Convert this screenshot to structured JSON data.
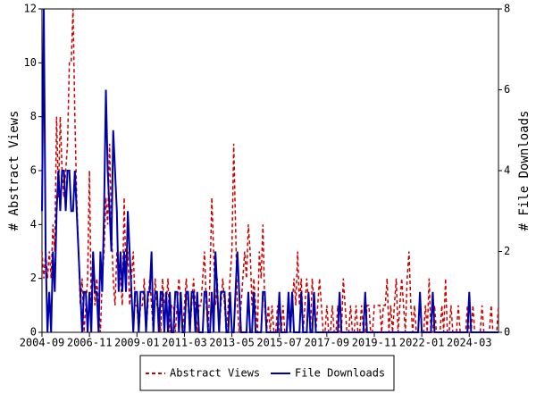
{
  "chart_data": {
    "type": "line",
    "x": [
      "2004-09",
      "2004-10",
      "2004-11",
      "2004-12",
      "2005-01",
      "2005-02",
      "2005-03",
      "2005-04",
      "2005-05",
      "2005-06",
      "2005-07",
      "2005-08",
      "2005-09",
      "2005-10",
      "2005-11",
      "2005-12",
      "2006-01",
      "2006-02",
      "2006-03",
      "2006-04",
      "2006-05",
      "2006-06",
      "2006-07",
      "2006-08",
      "2006-09",
      "2006-10",
      "2006-11",
      "2006-12",
      "2007-01",
      "2007-02",
      "2007-03",
      "2007-04",
      "2007-05",
      "2007-06",
      "2007-07",
      "2007-08",
      "2007-09",
      "2007-10",
      "2007-11",
      "2007-12",
      "2008-01",
      "2008-02",
      "2008-03",
      "2008-04",
      "2008-05",
      "2008-06",
      "2008-07",
      "2008-08",
      "2008-09",
      "2008-10",
      "2008-11",
      "2008-12",
      "2009-01",
      "2009-02",
      "2009-03",
      "2009-04",
      "2009-05",
      "2009-06",
      "2009-07",
      "2009-08",
      "2009-09",
      "2009-10",
      "2009-11",
      "2009-12",
      "2010-01",
      "2010-02",
      "2010-03",
      "2010-04",
      "2010-05",
      "2010-06",
      "2010-07",
      "2010-08",
      "2010-09",
      "2010-10",
      "2010-11",
      "2010-12",
      "2011-01",
      "2011-02",
      "2011-03",
      "2011-04",
      "2011-05",
      "2011-06",
      "2011-07",
      "2011-08",
      "2011-09",
      "2011-10",
      "2011-11",
      "2011-12",
      "2012-01",
      "2012-02",
      "2012-03",
      "2012-04",
      "2012-05",
      "2012-06",
      "2012-07",
      "2012-08",
      "2012-09",
      "2012-10",
      "2012-11",
      "2012-12",
      "2013-01",
      "2013-02",
      "2013-03",
      "2013-04",
      "2013-05",
      "2013-06",
      "2013-07",
      "2013-08",
      "2013-09",
      "2013-10",
      "2013-11",
      "2013-12",
      "2014-01",
      "2014-02",
      "2014-03",
      "2014-04",
      "2014-05",
      "2014-06",
      "2014-07",
      "2014-08",
      "2014-09",
      "2014-10",
      "2014-11",
      "2014-12",
      "2015-01",
      "2015-02",
      "2015-03",
      "2015-04",
      "2015-05",
      "2015-06",
      "2015-07",
      "2015-08",
      "2015-09",
      "2015-10",
      "2015-11",
      "2015-12",
      "2016-01",
      "2016-02",
      "2016-03",
      "2016-04",
      "2016-05",
      "2016-06",
      "2016-07",
      "2016-08",
      "2016-09",
      "2016-10",
      "2016-11",
      "2016-12",
      "2017-01",
      "2017-02",
      "2017-03",
      "2017-04",
      "2017-05",
      "2017-06",
      "2017-07",
      "2017-08",
      "2017-09",
      "2017-10",
      "2017-11",
      "2017-12",
      "2018-01",
      "2018-02",
      "2018-03",
      "2018-04",
      "2018-05",
      "2018-06",
      "2018-07",
      "2018-08",
      "2018-09",
      "2018-10",
      "2018-11",
      "2018-12",
      "2019-01",
      "2019-02",
      "2019-03",
      "2019-04",
      "2019-05",
      "2019-06",
      "2019-07",
      "2019-08",
      "2019-09",
      "2019-10",
      "2019-11",
      "2019-12",
      "2020-01",
      "2020-02",
      "2020-03",
      "2020-04",
      "2020-05",
      "2020-06",
      "2020-07",
      "2020-08",
      "2020-09",
      "2020-10",
      "2020-11",
      "2020-12",
      "2021-01",
      "2021-02",
      "2021-03",
      "2021-04",
      "2021-05",
      "2021-06",
      "2021-07",
      "2021-08",
      "2021-09",
      "2021-10",
      "2021-11",
      "2021-12",
      "2022-01",
      "2022-02",
      "2022-03",
      "2022-04",
      "2022-05",
      "2022-06",
      "2022-07",
      "2022-08",
      "2022-09",
      "2022-10",
      "2022-11",
      "2022-12",
      "2023-01",
      "2023-02",
      "2023-03",
      "2023-04",
      "2023-05",
      "2023-06",
      "2023-07",
      "2023-08",
      "2023-09",
      "2023-10",
      "2023-11",
      "2023-12",
      "2024-01",
      "2024-02",
      "2024-03",
      "2024-04",
      "2024-05",
      "2024-06",
      "2024-07",
      "2024-08",
      "2024-09",
      "2024-10",
      "2024-11",
      "2024-12",
      "2025-01",
      "2025-02",
      "2025-03",
      "2025-04",
      "2025-05",
      "2025-06",
      "2025-07"
    ],
    "xticks": [
      "2004-09",
      "2006-11",
      "2009-01",
      "2011-03",
      "2013-05",
      "2015-07",
      "2017-09",
      "2019-11",
      "2022-01",
      "2024-03"
    ],
    "ylabel": "# Abstract Views",
    "y2label": "# File Downloads",
    "ylim": [
      0,
      12
    ],
    "yticks": [
      0,
      2,
      4,
      6,
      8,
      10,
      12
    ],
    "y2lim": [
      0,
      8
    ],
    "y2ticks": [
      0,
      2,
      4,
      6,
      8
    ],
    "series": [
      {
        "name": "Abstract Views",
        "color": "#cc0000",
        "dash": true,
        "values": [
          3,
          2,
          3,
          2,
          3,
          2,
          4,
          3,
          8,
          5,
          8,
          6,
          5,
          6,
          7,
          10,
          10,
          12,
          8,
          5,
          3,
          1,
          2,
          0,
          1,
          2,
          6,
          1,
          3,
          1,
          2,
          1,
          0,
          2,
          3,
          5,
          4,
          7,
          4,
          2,
          1,
          3,
          2,
          2,
          1,
          5,
          2,
          3,
          1,
          2,
          3,
          1,
          1,
          0,
          1,
          1,
          2,
          0,
          1,
          2,
          1,
          0,
          2,
          1,
          1,
          0,
          2,
          1,
          1,
          2,
          0,
          1,
          1,
          0,
          1,
          2,
          1,
          0,
          1,
          2,
          1,
          0,
          1,
          2,
          1,
          0,
          1,
          1,
          2,
          3,
          1,
          0,
          2,
          5,
          3,
          1,
          2,
          0,
          1,
          2,
          1,
          0,
          1,
          2,
          3,
          7,
          4,
          1,
          0,
          1,
          2,
          3,
          2,
          4,
          3,
          1,
          2,
          1,
          0,
          3,
          2,
          4,
          1,
          0,
          1,
          0,
          1,
          0,
          0,
          1,
          0,
          0,
          1,
          0,
          0,
          1,
          0,
          1,
          2,
          1,
          3,
          1,
          2,
          0,
          1,
          2,
          1,
          0,
          2,
          1,
          0,
          1,
          2,
          1,
          0,
          0,
          1,
          0,
          0,
          1,
          0,
          0,
          1,
          0,
          0,
          2,
          1,
          0,
          0,
          1,
          0,
          0,
          1,
          0,
          0,
          1,
          0,
          0,
          1,
          1,
          0,
          0,
          1,
          1,
          1,
          1,
          0,
          1,
          1,
          2,
          0,
          1,
          0,
          1,
          2,
          0,
          1,
          2,
          1,
          0,
          2,
          3,
          1,
          0,
          1,
          0,
          0,
          1,
          0,
          0,
          1,
          0,
          2,
          0,
          0,
          1,
          0,
          0,
          0,
          1,
          0,
          2,
          0,
          0,
          1,
          0,
          0,
          0,
          1,
          0,
          0,
          0,
          0,
          1,
          0,
          0,
          1,
          0,
          0,
          0,
          0,
          1,
          0,
          0,
          0,
          0,
          1,
          0,
          0,
          0,
          1
        ]
      },
      {
        "name": "File Downloads",
        "color": "#0000aa",
        "axis": "y2",
        "values": [
          3,
          8,
          2,
          0,
          1,
          0,
          2,
          1,
          3,
          4,
          3,
          4,
          4,
          3,
          4,
          4,
          3,
          3,
          4,
          3,
          2,
          1,
          0,
          1,
          1,
          0,
          1,
          0,
          2,
          1,
          1,
          0,
          2,
          1,
          3,
          6,
          4,
          3,
          2,
          5,
          4,
          3,
          1,
          2,
          1,
          2,
          1,
          3,
          2,
          1,
          0,
          1,
          1,
          0,
          1,
          1,
          1,
          0,
          1,
          1,
          2,
          0,
          1,
          1,
          0,
          1,
          1,
          0,
          1,
          0,
          1,
          0,
          0,
          1,
          1,
          0,
          1,
          0,
          0,
          1,
          1,
          0,
          1,
          1,
          0,
          1,
          0,
          0,
          0,
          1,
          1,
          0,
          0,
          1,
          0,
          2,
          1,
          0,
          1,
          1,
          1,
          0,
          0,
          1,
          0,
          0,
          1,
          2,
          1,
          0,
          0,
          0,
          0,
          1,
          0,
          0,
          1,
          0,
          0,
          0,
          0,
          1,
          1,
          0,
          0,
          0,
          0,
          0,
          0,
          0,
          1,
          0,
          0,
          0,
          0,
          1,
          0,
          1,
          0,
          0,
          0,
          0,
          1,
          0,
          0,
          0,
          1,
          0,
          0,
          1,
          0,
          0,
          0,
          0,
          0,
          0,
          0,
          0,
          0,
          0,
          0,
          0,
          0,
          1,
          0,
          0,
          0,
          0,
          0,
          0,
          0,
          0,
          0,
          0,
          0,
          0,
          0,
          1,
          0,
          0,
          0,
          0,
          0,
          0,
          0,
          0,
          0,
          0,
          0,
          0,
          0,
          0,
          0,
          0,
          0,
          0,
          0,
          0,
          0,
          0,
          0,
          0,
          0,
          0,
          0,
          0,
          0,
          1,
          0,
          0,
          0,
          0,
          0,
          0,
          1,
          0,
          0,
          0,
          0,
          0,
          0,
          0,
          0,
          0,
          0,
          0,
          0,
          0,
          0,
          0,
          0,
          0,
          0,
          0,
          1,
          0,
          0,
          0,
          0,
          0,
          0,
          0,
          0,
          0,
          0,
          0,
          0,
          0,
          0,
          0,
          0
        ]
      }
    ]
  }
}
